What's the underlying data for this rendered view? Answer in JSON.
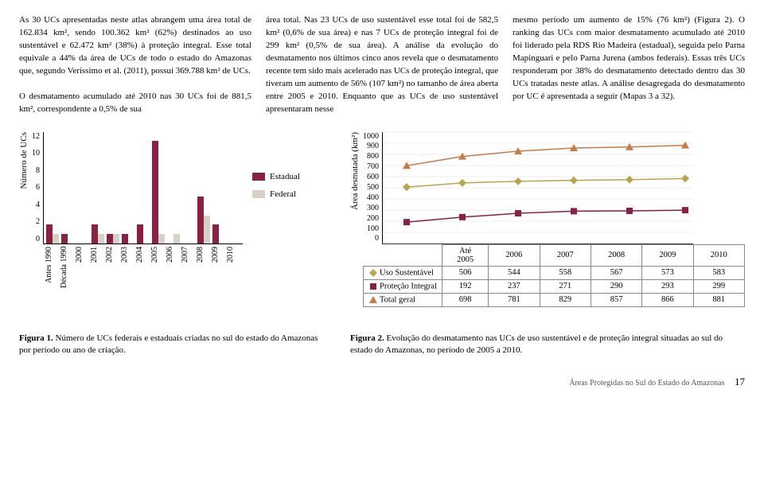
{
  "paragraphs": {
    "p1": "As 30 UCs apresentadas neste atlas abrangem uma área total de 162.834 km², sendo 100.362 km² (62%) destinados ao uso sustentável e 62.472 km² (38%) à proteção integral. Esse total equivale a 44% da área de UCs de todo o estado do Amazonas que, segundo Veríssimo et al. (2011), possui 369.788 km² de UCs.",
    "p2": "O desmatamento acumulado até 2010 nas 30 UCs foi de 881,5 km², correspondente a 0,5% de sua",
    "p3": "área total. Nas 23 UCs de uso sustentável esse total foi de 582,5 km² (0,6% de sua área) e nas 7 UCs de proteção integral foi de 299 km² (0,5% de sua área). A análise da evolução do desmatamento nos últimos cinco anos revela que o desmatamento recente tem sido mais acelerado nas UCs de proteção integral, que tiveram um aumento de 56% (107 km²) no tamanho de área aberta entre 2005 e 2010. Enquanto que as UCs de uso sustentável apresentaram nesse",
    "p4": "mesmo período um aumento de 15% (76 km²) (Figura 2). O ranking das UCs com maior desmatamento acumulado até 2010 foi liderado pela RDS Rio Madeira (estadual), seguida pelo Parna Mapinguari e pelo Parna Jurena (ambos federais). Essas três UCs responderam por 38% do desmatamento detectado dentro das 30 UCs tratadas neste atlas. A análise desagregada do desmatamento por UC é apresentada a seguir (Mapas 3 a 32)."
  },
  "fig1": {
    "ylabel": "Número de UCs",
    "ymax": 12,
    "ytick_step": 2,
    "categories": [
      "Antes 1990",
      "Década 1990",
      "2000",
      "2001",
      "2002",
      "2003",
      "2004",
      "2005",
      "2006",
      "2007",
      "2008",
      "2009",
      "2010"
    ],
    "series": [
      {
        "name": "Estadual",
        "color": "#8b2142",
        "values": [
          2,
          1,
          0,
          2,
          1,
          1,
          2,
          11,
          0,
          0,
          5,
          2,
          0
        ]
      },
      {
        "name": "Federal",
        "color": "#d9d0c5",
        "values": [
          1,
          0,
          0,
          1,
          1,
          0,
          0,
          1,
          1,
          0,
          3,
          0,
          0
        ]
      }
    ]
  },
  "fig2": {
    "ylabel": "Área desmatada (km²)",
    "ymax": 1000,
    "ytick_step": 100,
    "xlabels": [
      "Até 2005",
      "2006",
      "2007",
      "2008",
      "2009",
      "2010"
    ],
    "series": [
      {
        "name": "Uso Sustentável",
        "marker": "diamond",
        "color": "#b8a54c",
        "values": [
          506,
          544,
          558,
          567,
          573,
          583
        ]
      },
      {
        "name": "Proteção Integral",
        "marker": "square",
        "color": "#8b2142",
        "values": [
          192,
          237,
          271,
          290,
          293,
          299
        ]
      },
      {
        "name": "Total geral",
        "marker": "triangle",
        "color": "#c77b48",
        "values": [
          698,
          781,
          829,
          857,
          866,
          881
        ]
      }
    ]
  },
  "captions": {
    "fig1_b": "Figura 1.",
    "fig1_t": " Número de UCs federais e estaduais criadas no sul do estado do Amazonas por período ou ano de criação.",
    "fig2_b": "Figura 2.",
    "fig2_t": " Evolução do desmatamento nas UCs de uso sustentável e de proteção integral situadas ao sul do estado do Amazonas, no período de 2005 a 2010."
  },
  "footer": {
    "text": "Áreas Protegidas no Sul do Estado do Amazonas",
    "page": "17"
  }
}
